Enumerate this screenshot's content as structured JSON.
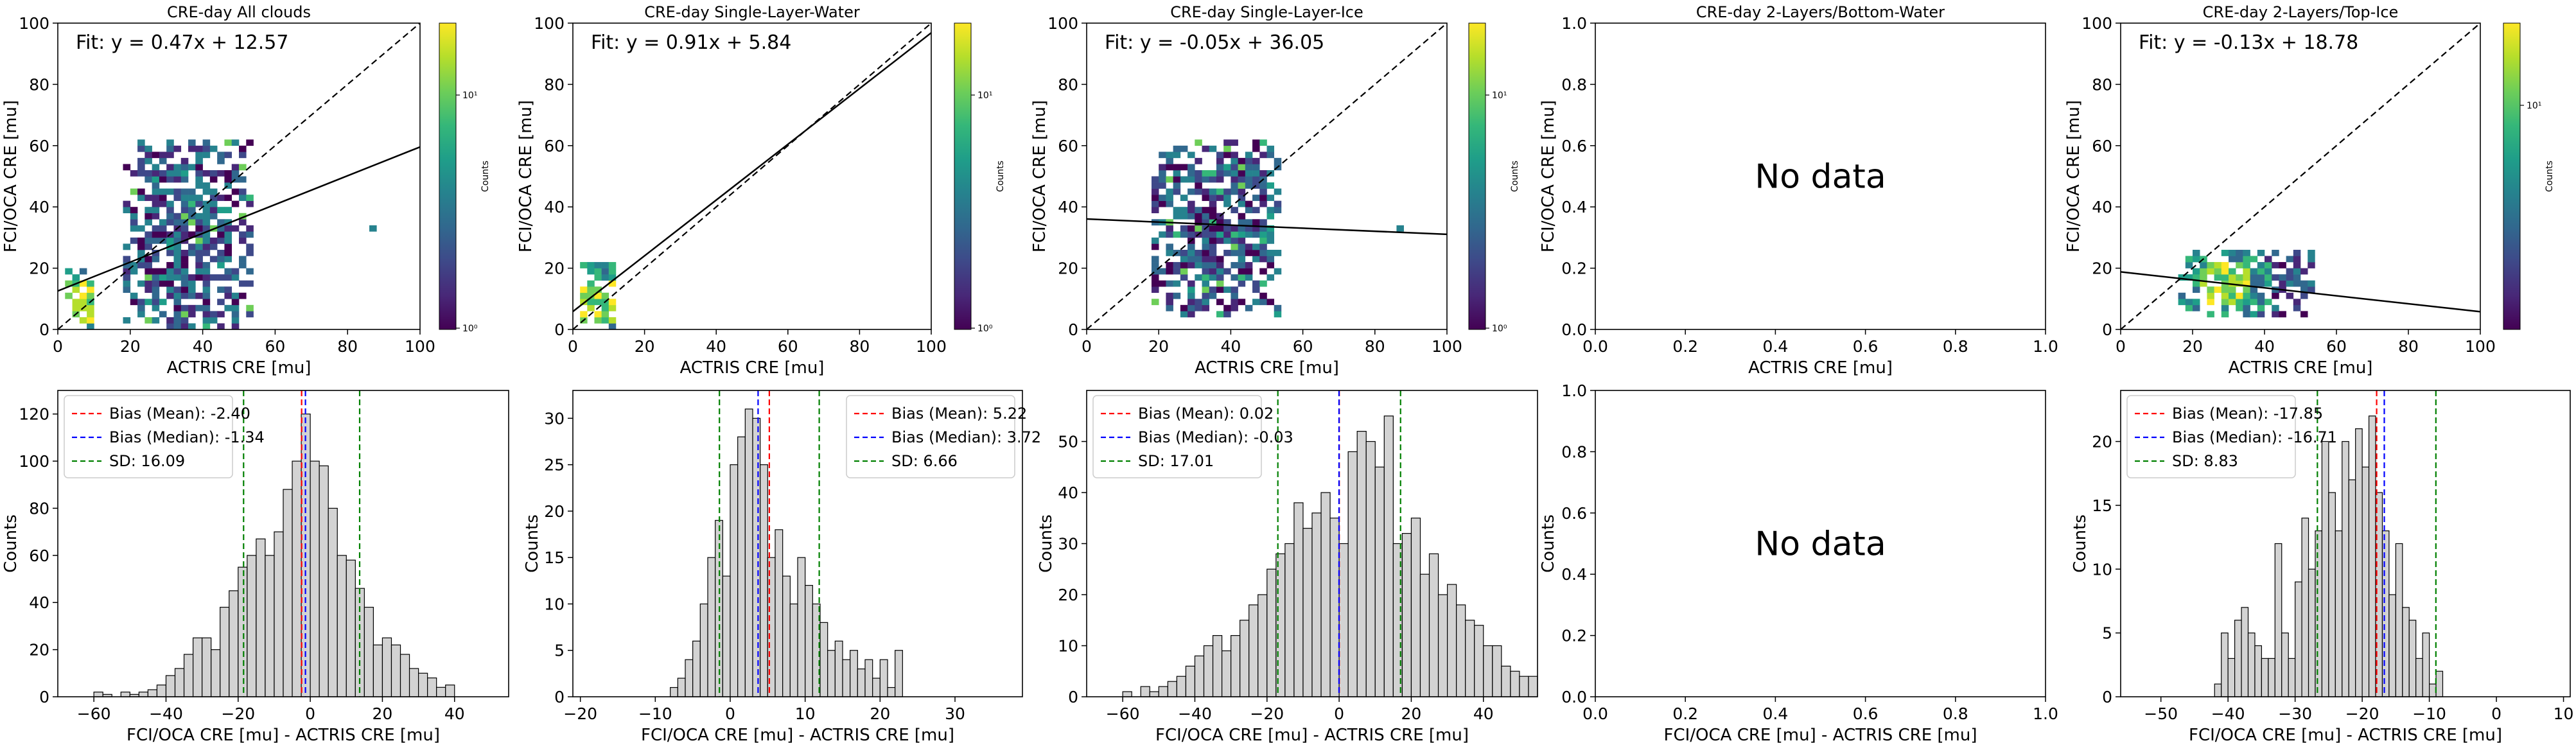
{
  "chart_data": [
    {
      "type": "heatmap",
      "title": "CRE-day All clouds",
      "xlabel": "ACTRIS CRE [mu]",
      "ylabel": "FCI/OCA CRE [mu]",
      "xlim": [
        0,
        100
      ],
      "ylim": [
        0,
        100
      ],
      "xticks": [
        0,
        20,
        40,
        60,
        80,
        100
      ],
      "yticks": [
        0,
        20,
        40,
        60,
        80,
        100
      ],
      "fit_text": "Fit: y = 0.47x + 12.57",
      "fit": {
        "slope": 0.47,
        "intercept": 12.57
      },
      "one_to_one_line": true,
      "colorbar": {
        "label": "Counts",
        "scale": "log",
        "ticks": [
          "10⁰",
          "10¹"
        ]
      },
      "density_regions": [
        {
          "x": [
            2,
            10
          ],
          "y": [
            0,
            20
          ],
          "peak": [
            4,
            8
          ]
        },
        {
          "x": [
            18,
            54
          ],
          "y": [
            0,
            62
          ]
        },
        {
          "x": [
            86,
            88
          ],
          "y": [
            32,
            34
          ]
        }
      ]
    },
    {
      "type": "heatmap",
      "title": "CRE-day Single-Layer-Water",
      "xlabel": "ACTRIS CRE [mu]",
      "ylabel": "FCI/OCA CRE [mu]",
      "xlim": [
        0,
        100
      ],
      "ylim": [
        0,
        100
      ],
      "xticks": [
        0,
        20,
        40,
        60,
        80,
        100
      ],
      "yticks": [
        0,
        20,
        40,
        60,
        80,
        100
      ],
      "fit_text": "Fit: y = 0.91x + 5.84",
      "fit": {
        "slope": 0.91,
        "intercept": 5.84
      },
      "one_to_one_line": true,
      "colorbar": {
        "label": "Counts",
        "scale": "log",
        "ticks": [
          "10⁰",
          "10¹"
        ]
      },
      "density_regions": [
        {
          "x": [
            2,
            12
          ],
          "y": [
            0,
            22
          ],
          "peak": [
            6,
            8
          ]
        }
      ]
    },
    {
      "type": "heatmap",
      "title": "CRE-day Single-Layer-Ice",
      "xlabel": "ACTRIS CRE [mu]",
      "ylabel": "FCI/OCA CRE [mu]",
      "xlim": [
        0,
        100
      ],
      "ylim": [
        0,
        100
      ],
      "xticks": [
        0,
        20,
        40,
        60,
        80,
        100
      ],
      "yticks": [
        0,
        20,
        40,
        60,
        80,
        100
      ],
      "fit_text": "Fit: y = -0.05x + 36.05",
      "fit": {
        "slope": -0.05,
        "intercept": 36.05
      },
      "one_to_one_line": true,
      "colorbar": {
        "label": "Counts",
        "scale": "log",
        "ticks": [
          "10⁰",
          "10¹"
        ]
      },
      "density_regions": [
        {
          "x": [
            18,
            54
          ],
          "y": [
            4,
            62
          ]
        },
        {
          "x": [
            86,
            88
          ],
          "y": [
            32,
            34
          ]
        }
      ]
    },
    {
      "type": "heatmap",
      "title": "CRE-day 2-Layers/Bottom-Water",
      "xlabel": "ACTRIS CRE [mu]",
      "ylabel": "FCI/OCA CRE [mu]",
      "xlim": [
        0,
        1
      ],
      "ylim": [
        0,
        1
      ],
      "xticks": [
        "0.0",
        "0.2",
        "0.4",
        "0.6",
        "0.8",
        "1.0"
      ],
      "yticks": [
        "0.0",
        "0.2",
        "0.4",
        "0.6",
        "0.8",
        "1.0"
      ],
      "annotation": "No data"
    },
    {
      "type": "heatmap",
      "title": "CRE-day 2-Layers/Top-Ice",
      "xlabel": "ACTRIS CRE [mu]",
      "ylabel": "FCI/OCA CRE [mu]",
      "xlim": [
        0,
        100
      ],
      "ylim": [
        0,
        100
      ],
      "xticks": [
        0,
        20,
        40,
        60,
        80,
        100
      ],
      "yticks": [
        0,
        20,
        40,
        60,
        80,
        100
      ],
      "fit_text": "Fit: y = -0.13x + 18.78",
      "fit": {
        "slope": -0.13,
        "intercept": 18.78
      },
      "one_to_one_line": true,
      "colorbar": {
        "label": "Counts",
        "scale": "log",
        "ticks": [
          "10¹"
        ]
      },
      "density_regions": [
        {
          "x": [
            16,
            54
          ],
          "y": [
            4,
            26
          ],
          "peak": [
            28,
            14
          ]
        }
      ]
    },
    {
      "type": "bar",
      "subtype": "histogram",
      "xlabel": "FCI/OCA CRE [mu] - ACTRIS CRE [mu]",
      "ylabel": "Counts",
      "xlim": [
        -70,
        55
      ],
      "ylim": [
        0,
        130
      ],
      "xticks": [
        -60,
        -40,
        -20,
        0,
        20,
        40
      ],
      "yticks": [
        0,
        20,
        40,
        60,
        80,
        100,
        120
      ],
      "bin_start": -60,
      "bin_width": 2.5,
      "values": [
        2,
        1,
        0,
        2,
        1,
        2,
        3,
        5,
        9,
        12,
        18,
        25,
        25,
        20,
        38,
        45,
        55,
        60,
        67,
        60,
        70,
        88,
        100,
        120,
        100,
        98,
        80,
        60,
        58,
        46,
        38,
        22,
        25,
        22,
        18,
        12,
        10,
        8,
        4,
        5
      ],
      "legend_position": "upper left",
      "legend": [
        "Bias (Mean): -2.40",
        "Bias (Median): -1.34",
        "SD: 16.09"
      ],
      "lines": {
        "mean": -2.4,
        "median": -1.34,
        "sd": 16.09
      }
    },
    {
      "type": "bar",
      "subtype": "histogram",
      "xlabel": "FCI/OCA CRE [mu] - ACTRIS CRE [mu]",
      "ylabel": "Counts",
      "xlim": [
        -21,
        39
      ],
      "ylim": [
        0,
        33
      ],
      "xticks": [
        -20,
        -10,
        0,
        10,
        20,
        30
      ],
      "yticks": [
        0,
        5,
        10,
        15,
        20,
        25,
        30
      ],
      "bin_start": -8,
      "bin_width": 1,
      "values": [
        1,
        2,
        4,
        6,
        10,
        15,
        19,
        13,
        25,
        28,
        31,
        30,
        25,
        15,
        18,
        13,
        10,
        15,
        12,
        10,
        8,
        5,
        6,
        4,
        5,
        3,
        4,
        2,
        4,
        1,
        5
      ],
      "legend_position": "upper right",
      "legend": [
        "Bias (Mean): 5.22",
        "Bias (Median): 3.72",
        "SD: 6.66"
      ],
      "lines": {
        "mean": 5.22,
        "median": 3.72,
        "sd": 6.66
      }
    },
    {
      "type": "bar",
      "subtype": "histogram",
      "xlabel": "FCI/OCA CRE [mu] - ACTRIS CRE [mu]",
      "ylabel": "Counts",
      "xlim": [
        -70,
        55
      ],
      "ylim": [
        0,
        60
      ],
      "xticks": [
        -60,
        -40,
        -20,
        0,
        20,
        40
      ],
      "yticks": [
        0,
        10,
        20,
        30,
        40,
        50
      ],
      "bin_start": -60,
      "bin_width": 2.5,
      "values": [
        1,
        0,
        2,
        1,
        2,
        3,
        4,
        6,
        8,
        10,
        12,
        9,
        12,
        15,
        18,
        20,
        25,
        28,
        30,
        38,
        33,
        36,
        40,
        35,
        30,
        48,
        52,
        50,
        45,
        55,
        30,
        32,
        35,
        24,
        28,
        20,
        22,
        18,
        15,
        14,
        10,
        10,
        6,
        5,
        4,
        4
      ],
      "legend_position": "upper left",
      "legend": [
        "Bias (Mean): 0.02",
        "Bias (Median): -0.03",
        "SD: 17.01"
      ],
      "lines": {
        "mean": 0.02,
        "median": -0.03,
        "sd": 17.01
      }
    },
    {
      "type": "bar",
      "subtype": "histogram",
      "xlabel": "FCI/OCA CRE [mu] - ACTRIS CRE [mu]",
      "ylabel": "Counts",
      "xlim": [
        0,
        1
      ],
      "ylim": [
        0,
        1
      ],
      "xticks": [
        "0.0",
        "0.2",
        "0.4",
        "0.6",
        "0.8",
        "1.0"
      ],
      "yticks": [
        "0.0",
        "0.2",
        "0.4",
        "0.6",
        "0.8",
        "1.0"
      ],
      "annotation": "No data"
    },
    {
      "type": "bar",
      "subtype": "histogram",
      "xlabel": "FCI/OCA CRE [mu] - ACTRIS CRE [mu]",
      "ylabel": "Counts",
      "xlim": [
        -56,
        11
      ],
      "ylim": [
        0,
        24
      ],
      "xticks": [
        -50,
        -40,
        -30,
        -20,
        -10,
        0,
        10
      ],
      "yticks": [
        0,
        5,
        10,
        15,
        20
      ],
      "bin_start": -42,
      "bin_width": 1,
      "values": [
        1,
        5,
        3,
        6,
        7,
        5,
        4,
        3,
        3,
        12,
        5,
        3,
        9,
        14,
        10,
        13,
        20,
        16,
        13,
        20,
        17,
        21,
        18,
        22,
        16,
        13,
        8,
        12,
        7,
        6,
        3,
        5,
        1,
        2
      ],
      "legend_position": "upper left",
      "legend": [
        "Bias (Mean): -17.85",
        "Bias (Median): -16.71",
        "SD: 8.83"
      ],
      "lines": {
        "mean": -17.85,
        "median": -16.71,
        "sd": 8.83
      }
    }
  ],
  "colors": {
    "bar_fill": "#d3d3d3",
    "bar_edge": "#000000",
    "mean_line": "#ff0000",
    "median_line": "#0000ff",
    "sd_line": "#008000",
    "viridis": [
      "#440154",
      "#482878",
      "#3e4989",
      "#31688e",
      "#26828e",
      "#1f9e89",
      "#35b779",
      "#6ece58",
      "#b5de2b",
      "#fde725"
    ]
  }
}
